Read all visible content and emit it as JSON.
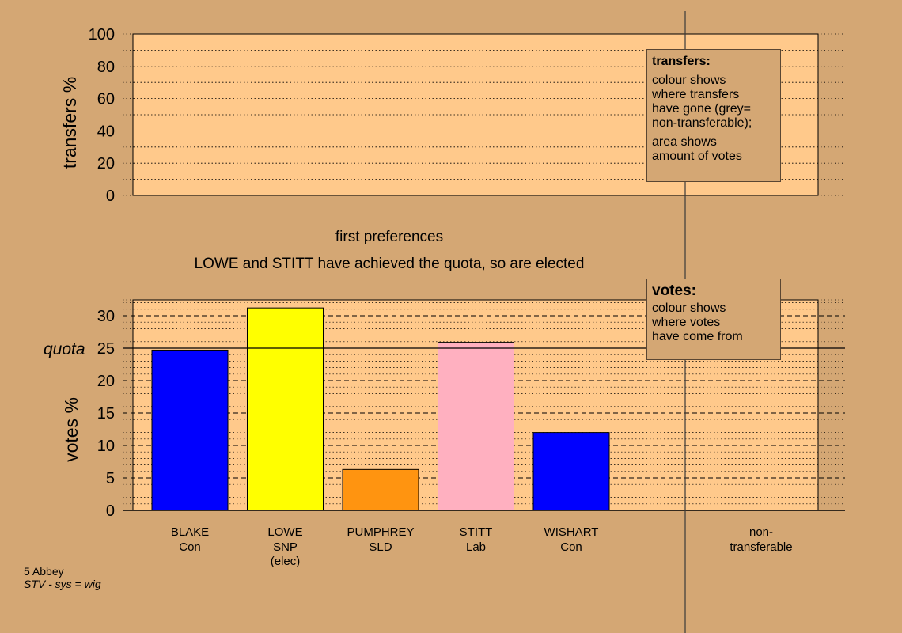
{
  "chart_data": [
    {
      "type": "area",
      "ylabel": "transfers %",
      "ylim": [
        0,
        100
      ],
      "yticks": [
        "0",
        "20",
        "40",
        "60",
        "80",
        "100"
      ],
      "values": [],
      "grid": "dotted every 10"
    },
    {
      "type": "bar",
      "title": "first preferences",
      "subtitle": "LOWE and STITT have achieved the quota, so are elected",
      "ylabel": "votes %",
      "ylim": [
        0,
        33
      ],
      "yticks": [
        "0",
        "5",
        "10",
        "15",
        "20",
        "25",
        "30"
      ],
      "quota": {
        "label": "quota",
        "value": 25
      },
      "categories": [
        {
          "name": "BLAKE",
          "party": "Con",
          "note": "",
          "value": 24.7,
          "color": "#0000ff"
        },
        {
          "name": "LOWE",
          "party": "SNP",
          "note": "(elec)",
          "value": 31.2,
          "color": "#ffff00"
        },
        {
          "name": "PUMPHREY",
          "party": "SLD",
          "note": "",
          "value": 6.3,
          "color": "#ff9410"
        },
        {
          "name": "STITT",
          "party": "Lab",
          "note": "",
          "value": 25.9,
          "color": "#ffb0c0"
        },
        {
          "name": "WISHART",
          "party": "Con",
          "note": "",
          "value": 12.0,
          "color": "#0000ff"
        }
      ],
      "extra_category": {
        "line1": "non-",
        "line2": "transferable",
        "value": 0
      }
    }
  ],
  "legends": {
    "transfers": {
      "title": "transfers:",
      "lines": [
        "colour shows",
        "where transfers",
        "have gone (grey=",
        "non-transferable);"
      ],
      "lines2": [
        "area shows",
        "amount of votes"
      ]
    },
    "votes": {
      "title": "votes:",
      "lines": [
        "colour shows",
        "where votes",
        "have come from"
      ]
    }
  },
  "footnote": {
    "line1": "5 Abbey",
    "line2": "STV - sys = wig"
  },
  "colors": {
    "background": "#d4a774",
    "plot_background": "#ffc98b"
  }
}
